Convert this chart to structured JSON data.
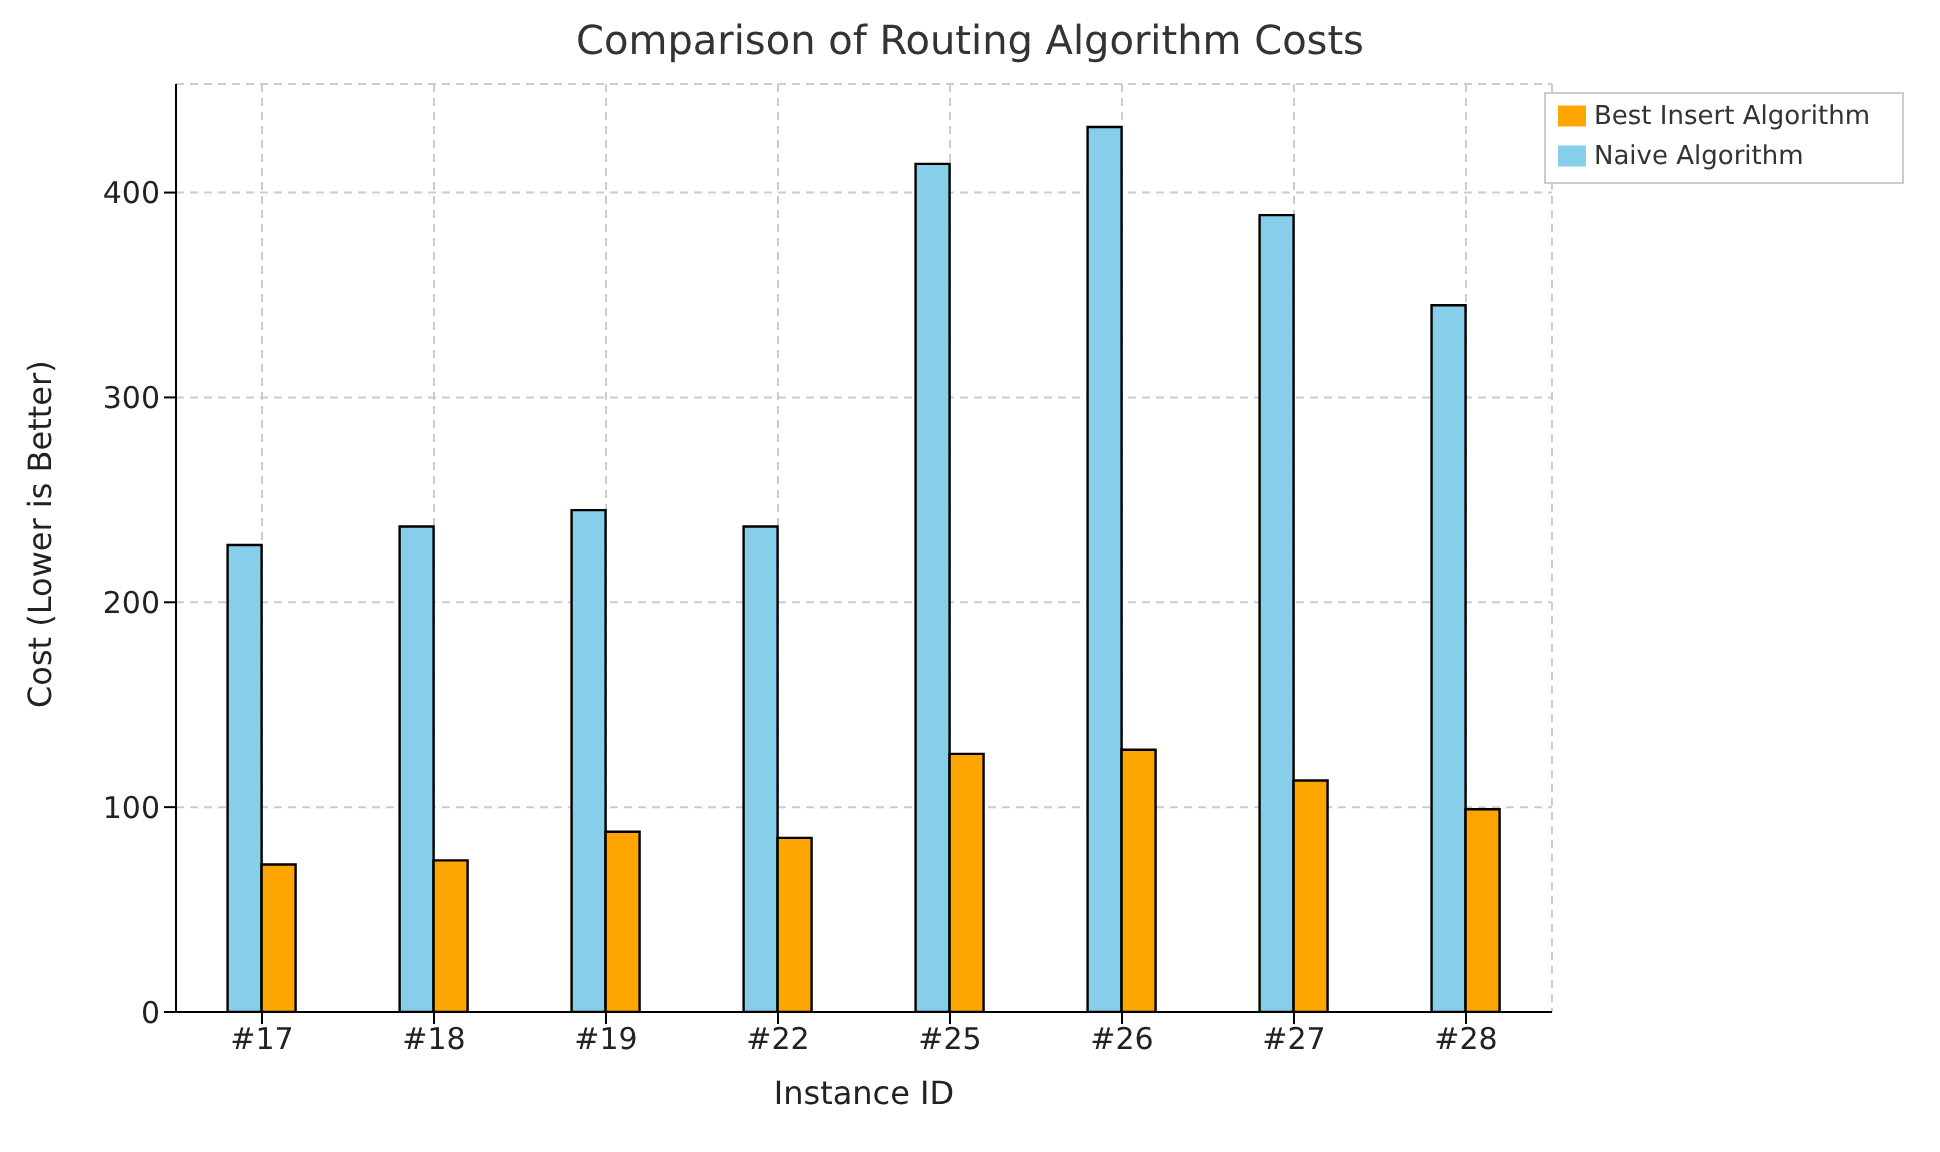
{
  "chart_data": {
    "type": "bar",
    "title": "Comparison of Routing Algorithm Costs",
    "xlabel": "Instance ID",
    "ylabel": "Cost (Lower is Better)",
    "categories": [
      "#17",
      "#18",
      "#19",
      "#22",
      "#25",
      "#26",
      "#27",
      "#28"
    ],
    "series": [
      {
        "name": "Naive Algorithm",
        "color": "#87ceeb",
        "values": [
          228,
          237,
          245,
          237,
          414,
          432,
          389,
          345
        ]
      },
      {
        "name": "Best Insert Algorithm",
        "color": "#ffa500",
        "values": [
          72,
          74,
          88,
          85,
          126,
          128,
          113,
          99
        ]
      }
    ],
    "ylim": [
      0,
      453
    ],
    "yticks": [
      0,
      100,
      200,
      300,
      400
    ],
    "grid": true,
    "legend": "top right"
  }
}
